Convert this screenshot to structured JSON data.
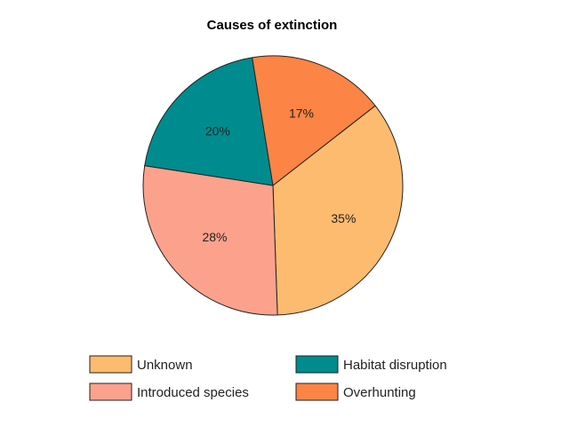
{
  "chart_data": {
    "type": "pie",
    "title": "Causes of extinction",
    "slices": [
      {
        "label": "Unknown",
        "value": 35,
        "display": "35%",
        "color": "#FDBB6F"
      },
      {
        "label": "Introduced species",
        "value": 28,
        "display": "28%",
        "color": "#FCA28C"
      },
      {
        "label": "Habitat disruption",
        "value": 20,
        "display": "20%",
        "color": "#008C8E"
      },
      {
        "label": "Overhunting",
        "value": 17,
        "display": "17%",
        "color": "#FC8444"
      }
    ],
    "legend_position": "bottom",
    "legend_order": [
      "Unknown",
      "Habitat disruption",
      "Introduced species",
      "Overhunting"
    ]
  }
}
